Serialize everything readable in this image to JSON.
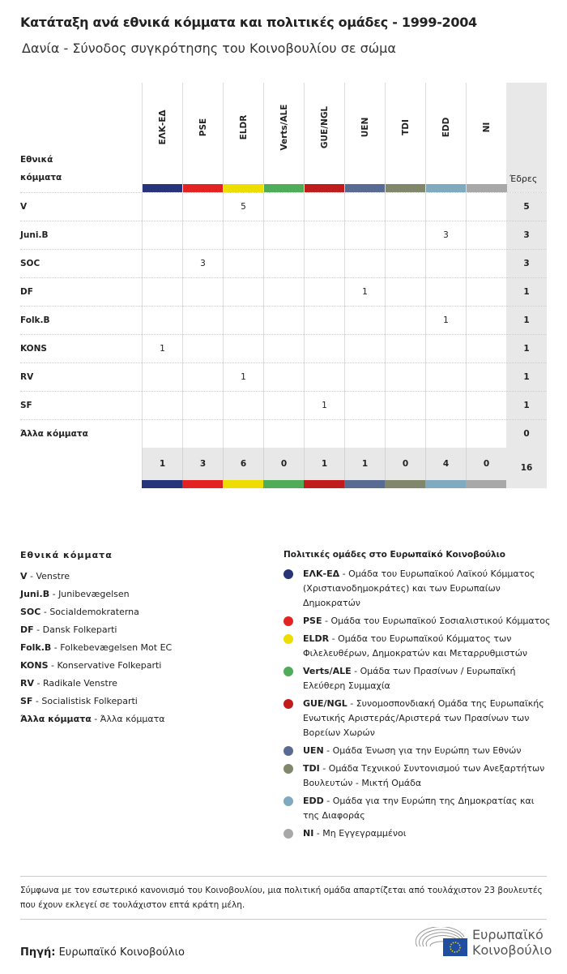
{
  "title": "Κατάταξη ανά εθνικά κόμματα και πολιτικές ομάδες - 1999-2004",
  "subtitle": "Δανία - Σύνοδος συγκρότησης του Κοινοβουλίου σε σώμα",
  "table": {
    "row_header": "Εθνικά κόμματα",
    "seats_header": "Έδρες",
    "groups": [
      {
        "code": "ΕΛΚ-ΕΔ",
        "color": "#27347a"
      },
      {
        "code": "PSE",
        "color": "#e32322"
      },
      {
        "code": "ELDR",
        "color": "#eedd00"
      },
      {
        "code": "Verts/ALE",
        "color": "#4fad59"
      },
      {
        "code": "GUE/NGL",
        "color": "#c11c1c"
      },
      {
        "code": "UEN",
        "color": "#5a6b93"
      },
      {
        "code": "TDI",
        "color": "#80876a"
      },
      {
        "code": "EDD",
        "color": "#7faabf"
      },
      {
        "code": "NI",
        "color": "#a8a8a8"
      }
    ],
    "rows": [
      {
        "party": "V",
        "values": [
          "",
          "",
          "5",
          "",
          "",
          "",
          "",
          "",
          ""
        ],
        "seats": "5"
      },
      {
        "party": "Juni.B",
        "values": [
          "",
          "",
          "",
          "",
          "",
          "",
          "",
          "3",
          ""
        ],
        "seats": "3"
      },
      {
        "party": "SOC",
        "values": [
          "",
          "3",
          "",
          "",
          "",
          "",
          "",
          "",
          ""
        ],
        "seats": "3"
      },
      {
        "party": "DF",
        "values": [
          "",
          "",
          "",
          "",
          "",
          "1",
          "",
          "",
          ""
        ],
        "seats": "1"
      },
      {
        "party": "Folk.B",
        "values": [
          "",
          "",
          "",
          "",
          "",
          "",
          "",
          "1",
          ""
        ],
        "seats": "1"
      },
      {
        "party": "KONS",
        "values": [
          "1",
          "",
          "",
          "",
          "",
          "",
          "",
          "",
          ""
        ],
        "seats": "1"
      },
      {
        "party": "RV",
        "values": [
          "",
          "",
          "1",
          "",
          "",
          "",
          "",
          "",
          ""
        ],
        "seats": "1"
      },
      {
        "party": "SF",
        "values": [
          "",
          "",
          "",
          "",
          "1",
          "",
          "",
          "",
          ""
        ],
        "seats": "1"
      },
      {
        "party": "Άλλα κόμματα",
        "values": [
          "",
          "",
          "",
          "",
          "",
          "",
          "",
          "",
          ""
        ],
        "seats": "0"
      }
    ],
    "totals": [
      "1",
      "3",
      "6",
      "0",
      "1",
      "1",
      "0",
      "4",
      "0"
    ],
    "total_seats": "16"
  },
  "national_legend": {
    "title": "Εθνικά κόμματα",
    "items": [
      {
        "abbr": "V",
        "name": "Venstre"
      },
      {
        "abbr": "Juni.B",
        "name": "Junibevægelsen"
      },
      {
        "abbr": "SOC",
        "name": "Socialdemokraterna"
      },
      {
        "abbr": "DF",
        "name": "Dansk Folkeparti"
      },
      {
        "abbr": "Folk.B",
        "name": "Folkebevægelsen Mot EC"
      },
      {
        "abbr": "KONS",
        "name": "Konservative Folkeparti"
      },
      {
        "abbr": "RV",
        "name": "Radikale Venstre"
      },
      {
        "abbr": "SF",
        "name": "Socialistisk Folkeparti"
      },
      {
        "abbr": "Άλλα κόμματα",
        "name": "Άλλα κόμματα"
      }
    ]
  },
  "group_legend": {
    "title": "Πολιτικές ομάδες στο Ευρωπαϊκό Κοινοβούλιο",
    "items": [
      {
        "abbr": "ΕΛΚ-ΕΔ",
        "name": "Ομάδα του Ευρωπαϊκού Λαϊκού Κόμματος (Χριστιανοδημοκράτες) και των Ευρωπαίων Δημοκρατών"
      },
      {
        "abbr": "PSE",
        "name": "Ομάδα του Ευρωπαϊκού Σοσιαλιστικού Κόμματος"
      },
      {
        "abbr": "ELDR",
        "name": "Ομάδα του Ευρωπαϊκού Κόμματος των Φιλελευθέρων, Δημοκρατών και Μεταρρυθμιστών"
      },
      {
        "abbr": "Verts/ALE",
        "name": "Ομάδα των Πρασίνων / Ευρωπαϊκή Ελεύθερη Συμμαχία"
      },
      {
        "abbr": "GUE/NGL",
        "name": "Συνομοσπονδιακή Ομάδα της Ευρωπαϊκής Ενωτικής Αριστεράς/Αριστερά των Πρασίνων των Βορείων Χωρών"
      },
      {
        "abbr": "UEN",
        "name": "Ομάδα Ένωση για την Ευρώπη των Εθνών"
      },
      {
        "abbr": "TDI",
        "name": "Ομάδα Τεχνικού Συντονισμού των Ανεξαρτήτων Βουλευτών - Μικτή Ομάδα"
      },
      {
        "abbr": "EDD",
        "name": "Ομάδα για την Ευρώπη της Δημοκρατίας και της Διαφοράς"
      },
      {
        "abbr": "NI",
        "name": "Μη Εγγεγραμμένοι"
      }
    ]
  },
  "note": "Σύμφωνα με τον εσωτερικό κανονισμό του Κοινοβουλίου, μια πολιτική ομάδα απαρτίζεται από τουλάχιστον 23 βουλευτές που έχουν εκλεγεί σε τουλάχιστον επτά κράτη μέλη.",
  "source": {
    "label": "Πηγή:",
    "value": "Ευρωπαϊκό Κοινοβούλιο"
  },
  "logo": {
    "line1": "Ευρωπαϊκό",
    "line2": "Κοινοβούλιο"
  }
}
